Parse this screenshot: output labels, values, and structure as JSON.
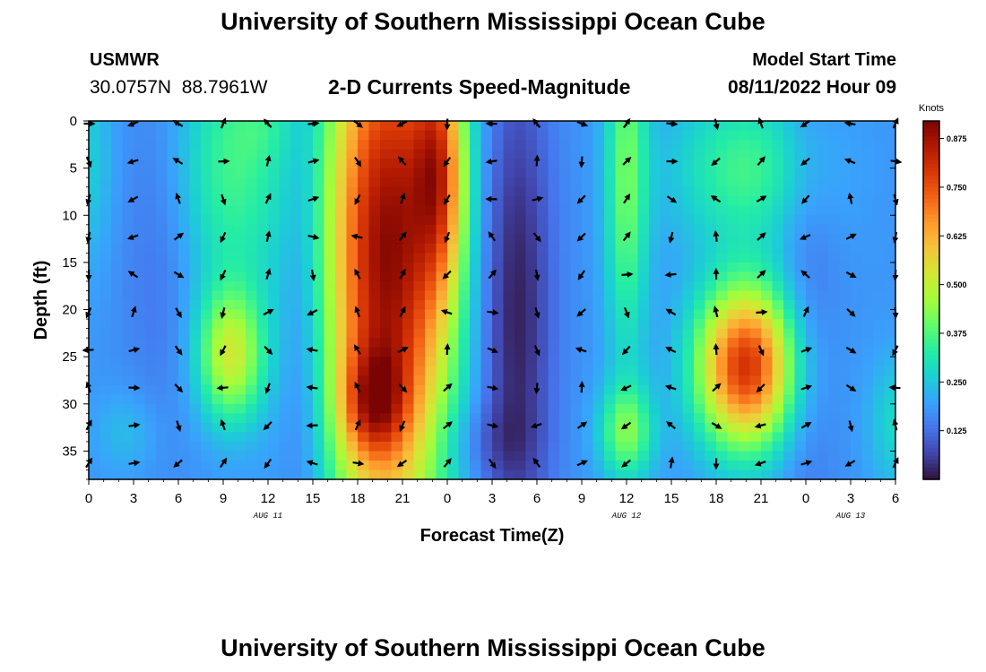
{
  "header": {
    "title": "University of Southern Mississippi Ocean Cube",
    "station": "USMWR",
    "coords": "30.0757N  88.7961W",
    "subtitle": "2-D Currents Speed-Magnitude",
    "start_label": "Model Start Time",
    "start_value": "08/11/2022 Hour 09"
  },
  "footer": {
    "title": "University of Southern Mississippi Ocean Cube"
  },
  "chart_data": {
    "type": "heatmap",
    "title": "2-D Currents Speed-Magnitude",
    "xlabel": "Forecast Time(Z)",
    "ylabel": "Depth (ft)",
    "x_hours": [
      0,
      54
    ],
    "ylim": [
      0,
      38
    ],
    "x_ticks": [
      {
        "hour": 0,
        "label": "0"
      },
      {
        "hour": 3,
        "label": "3"
      },
      {
        "hour": 6,
        "label": "6"
      },
      {
        "hour": 9,
        "label": "9"
      },
      {
        "hour": 12,
        "label": "12"
      },
      {
        "hour": 15,
        "label": "15"
      },
      {
        "hour": 18,
        "label": "18"
      },
      {
        "hour": 21,
        "label": "21"
      },
      {
        "hour": 24,
        "label": "0"
      },
      {
        "hour": 27,
        "label": "3"
      },
      {
        "hour": 30,
        "label": "6"
      },
      {
        "hour": 33,
        "label": "9"
      },
      {
        "hour": 36,
        "label": "12"
      },
      {
        "hour": 39,
        "label": "15"
      },
      {
        "hour": 42,
        "label": "18"
      },
      {
        "hour": 45,
        "label": "21"
      },
      {
        "hour": 48,
        "label": "0"
      },
      {
        "hour": 51,
        "label": "3"
      },
      {
        "hour": 54,
        "label": "6"
      }
    ],
    "date_labels": [
      {
        "hour": 12,
        "label": "AUG 11"
      },
      {
        "hour": 36,
        "label": "AUG 12"
      },
      {
        "hour": 51,
        "label": "AUG 13"
      }
    ],
    "y_ticks": [
      0,
      5,
      10,
      15,
      20,
      25,
      30,
      35
    ],
    "colorbar": {
      "label": "Knots",
      "range": [
        0.0,
        0.92
      ],
      "ticks": [
        "0.125",
        "0.250",
        "0.375",
        "0.500",
        "0.625",
        "0.750",
        "0.875"
      ],
      "colormap": [
        "#30123b",
        "#4145ab",
        "#4675ed",
        "#39a2fc",
        "#1bcfd4",
        "#24eca6",
        "#61fc6c",
        "#a4fc3b",
        "#d1e834",
        "#f3c63a",
        "#fe9b2d",
        "#f36315",
        "#d93806",
        "#b11901",
        "#7a0403"
      ]
    },
    "arrow_hours": [
      0,
      3,
      6,
      9,
      12,
      15,
      18,
      21,
      24,
      27,
      30,
      33,
      36,
      39,
      42,
      45,
      48,
      51,
      54
    ],
    "arrow_depths": [
      0,
      4,
      8,
      12,
      16,
      20,
      24,
      28,
      32,
      36
    ],
    "speed_features": [
      {
        "name": "background",
        "speed": 0.18
      },
      {
        "hour": 20,
        "depth": 14,
        "sx": 3.0,
        "sy": 22,
        "peak": 0.72
      },
      {
        "hour": 19,
        "depth": 30,
        "sx": 1.5,
        "sy": 4,
        "peak": 0.25
      },
      {
        "hour": 23.5,
        "depth": 5,
        "sx": 1.2,
        "sy": 9,
        "peak": 0.35
      },
      {
        "hour": 44,
        "depth": 26,
        "sx": 2.3,
        "sy": 6,
        "peak": 0.62
      },
      {
        "hour": 44,
        "depth": 5,
        "sx": 3.5,
        "sy": 6,
        "peak": 0.18
      },
      {
        "hour": 9.5,
        "depth": 25,
        "sx": 1.6,
        "sy": 5,
        "peak": 0.32
      },
      {
        "hour": 9.5,
        "depth": 5,
        "sx": 2.8,
        "sy": 10,
        "peak": 0.18
      },
      {
        "hour": 36,
        "depth": 6,
        "sx": 1.0,
        "sy": 14,
        "peak": 0.22
      },
      {
        "hour": 36,
        "depth": 33,
        "sx": 1.3,
        "sy": 3.5,
        "peak": 0.22
      },
      {
        "hour": 28.5,
        "depth": 20,
        "sx": 1.8,
        "sy": 20,
        "peak": -0.17
      },
      {
        "hour": 14.5,
        "depth": 18,
        "sx": 1.2,
        "sy": 25,
        "peak": -0.08
      },
      {
        "hour": 5,
        "depth": 12,
        "sx": 2.0,
        "sy": 14,
        "peak": -0.06
      },
      {
        "hour": 48,
        "depth": 20,
        "sx": 1.5,
        "sy": 20,
        "peak": -0.06
      },
      {
        "hour": 0,
        "depth": 4,
        "sx": 1.2,
        "sy": 8,
        "peak": 0.08
      },
      {
        "hour": 54,
        "depth": 32,
        "sx": 1.3,
        "sy": 5,
        "peak": 0.1
      },
      {
        "hour": 12,
        "depth": 0,
        "sx": 1.5,
        "sy": 3,
        "peak": 0.05
      },
      {
        "hour": 2.5,
        "depth": 33,
        "sx": 1.5,
        "sy": 3,
        "peak": 0.06
      },
      {
        "hour": 26,
        "depth": 34,
        "sx": 2.5,
        "sy": 3,
        "peak": -0.05
      }
    ]
  }
}
